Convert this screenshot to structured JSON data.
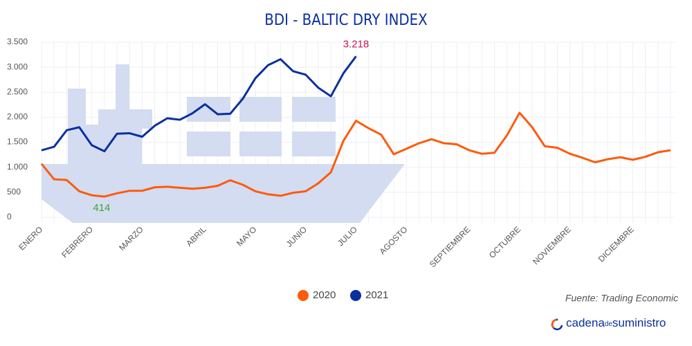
{
  "chart_data": {
    "type": "line",
    "title": "BDI - BALTIC DRY INDEX",
    "categories": [
      "ENERO",
      null,
      null,
      null,
      "FEBRERO",
      null,
      null,
      null,
      "MARZO",
      null,
      null,
      null,
      null,
      "ABRIL",
      null,
      null,
      null,
      "MAYO",
      null,
      null,
      null,
      "JUNIO",
      null,
      null,
      null,
      "JULIO",
      null,
      null,
      null,
      "AGOSTO",
      null,
      null,
      null,
      null,
      "SEPTIEMBRE",
      null,
      null,
      null,
      "OCTUBRE",
      null,
      null,
      null,
      "NOVIEMBRE",
      null,
      null,
      null,
      null,
      "DICIEMBRE",
      null,
      null,
      null
    ],
    "series": [
      {
        "name": "2020",
        "color": "#ff5a0a",
        "values": [
          1070,
          760,
          745,
          520,
          440,
          414,
          480,
          530,
          530,
          600,
          610,
          590,
          570,
          590,
          630,
          740,
          650,
          520,
          460,
          430,
          490,
          520,
          680,
          900,
          1530,
          1930,
          1780,
          1650,
          1260,
          1370,
          1480,
          1560,
          1480,
          1460,
          1340,
          1270,
          1290,
          1640,
          2090,
          1800,
          1420,
          1390,
          1270,
          1190,
          1100,
          1160,
          1200,
          1150,
          1210,
          1300,
          1340
        ],
        "value_labels": [
          null,
          null,
          null,
          null,
          null,
          "414",
          null,
          null,
          null,
          null,
          null,
          null,
          null,
          null,
          null,
          null,
          null,
          null,
          null,
          null,
          null,
          null,
          null,
          null,
          null,
          null,
          null,
          null,
          null,
          null,
          null,
          null,
          null,
          null,
          null,
          null,
          null,
          null,
          null,
          null,
          null,
          null,
          null,
          null,
          null,
          null,
          null,
          null,
          null,
          null,
          null
        ],
        "label_color": "#3aa835"
      },
      {
        "name": "2021",
        "color": "#0a2f9e",
        "values": [
          1340,
          1410,
          1740,
          1800,
          1440,
          1320,
          1670,
          1680,
          1610,
          1830,
          1980,
          1950,
          2080,
          2260,
          2060,
          2070,
          2370,
          2780,
          3040,
          3160,
          2920,
          2850,
          2590,
          2420,
          2880,
          3218,
          null,
          null,
          null,
          null,
          null,
          null,
          null,
          null,
          null,
          null,
          null,
          null,
          null,
          null,
          null,
          null,
          null,
          null,
          null,
          null,
          null,
          null,
          null,
          null,
          null
        ],
        "value_labels": [
          null,
          null,
          null,
          null,
          null,
          null,
          null,
          null,
          null,
          null,
          null,
          null,
          null,
          null,
          null,
          null,
          null,
          null,
          null,
          null,
          null,
          null,
          null,
          null,
          null,
          "3.218",
          null,
          null,
          null,
          null,
          null,
          null,
          null,
          null,
          null,
          null,
          null,
          null,
          null,
          null,
          null,
          null,
          null,
          null,
          null,
          null,
          null,
          null,
          null,
          null,
          null
        ],
        "label_color": "#c8174b"
      }
    ],
    "ylim": [
      0,
      3500
    ],
    "yticks": [
      0,
      500,
      {
        "value": 1000,
        "label": "1.000"
      },
      {
        "value": 1500,
        "label": "1.500"
      },
      {
        "value": 2000,
        "label": "2.000"
      },
      {
        "value": 2500,
        "label": "2.500"
      },
      {
        "value": 3000,
        "label": "3.000"
      },
      {
        "value": 3500,
        "label": "3.500"
      }
    ],
    "grid": true,
    "legend": "bottom",
    "source": "Fuente: Trading Economic"
  },
  "logo": {
    "parts": [
      "cadena",
      "de",
      "suministro"
    ]
  }
}
